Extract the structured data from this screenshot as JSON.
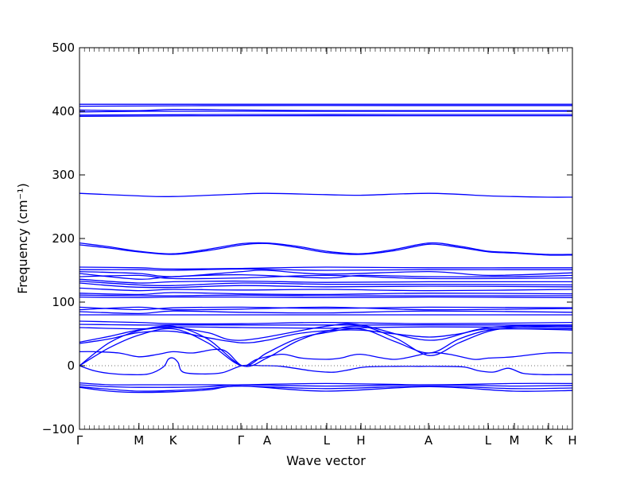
{
  "chart_data": {
    "type": "line",
    "title": "",
    "xlabel": "Wave vector",
    "ylabel": "Frequency (cm⁻¹)",
    "ylim": [
      -100,
      500
    ],
    "yticks": [
      -100,
      0,
      100,
      200,
      300,
      400,
      500
    ],
    "grid": false,
    "line_color": "#0000ff",
    "zero_line_color": "#6f6f6f",
    "high_symmetry_points": [
      {
        "label": "Γ",
        "x": 0.0
      },
      {
        "label": "M",
        "x": 0.1206
      },
      {
        "label": "K",
        "x": 0.1897
      },
      {
        "label": "Γ",
        "x": 0.3274
      },
      {
        "label": "A",
        "x": 0.3806
      },
      {
        "label": "L",
        "x": 0.5016
      },
      {
        "label": "H",
        "x": 0.571
      },
      {
        "label": "A",
        "x": 0.7081
      },
      {
        "label": "L",
        "x": 0.829
      },
      {
        "label": "M",
        "x": 0.8823
      },
      {
        "label": "K",
        "x": 0.9516
      },
      {
        "label": "H",
        "x": 1.0
      }
    ],
    "series": [
      {
        "x": [
          0.0,
          0.33,
          0.71,
          1.0
        ],
        "y": [
          411,
          411,
          411,
          411
        ]
      },
      {
        "x": [
          0.0,
          0.33,
          0.71,
          1.0
        ],
        "y": [
          408,
          409,
          409,
          409
        ]
      },
      {
        "x": [
          0.0,
          0.12,
          0.19,
          0.33,
          0.5,
          0.71,
          1.0
        ],
        "y": [
          402,
          401,
          403,
          402,
          401,
          401,
          401
        ]
      },
      {
        "x": [
          0.0,
          0.12,
          0.19,
          0.33,
          0.5,
          0.71,
          1.0
        ],
        "y": [
          399,
          400,
          400,
          400,
          400,
          400,
          400
        ]
      },
      {
        "x": [
          0.0,
          0.33,
          0.71,
          1.0
        ],
        "y": [
          394,
          395,
          395,
          395
        ]
      },
      {
        "x": [
          0.0,
          0.33,
          0.71,
          1.0
        ],
        "y": [
          392,
          393,
          393,
          393
        ]
      },
      {
        "x": [
          0.0,
          0.12,
          0.19,
          0.33,
          0.38,
          0.5,
          0.57,
          0.71,
          0.83,
          0.88,
          0.95,
          1.0
        ],
        "y": [
          271,
          267,
          266,
          270,
          271,
          269,
          268,
          271,
          267,
          266,
          265,
          265
        ]
      },
      {
        "x": [
          0.0,
          0.06,
          0.12,
          0.19,
          0.26,
          0.33,
          0.38,
          0.44,
          0.5,
          0.57,
          0.64,
          0.71,
          0.77,
          0.83,
          0.88,
          0.95,
          1.0
        ],
        "y": [
          193,
          187,
          180,
          176,
          183,
          192,
          193,
          188,
          180,
          176,
          183,
          193,
          188,
          180,
          178,
          175,
          175
        ]
      },
      {
        "x": [
          0.0,
          0.06,
          0.12,
          0.19,
          0.26,
          0.33,
          0.38,
          0.44,
          0.5,
          0.57,
          0.64,
          0.71,
          0.77,
          0.83,
          0.88,
          0.95,
          1.0
        ],
        "y": [
          190,
          185,
          179,
          175,
          181,
          190,
          192,
          186,
          178,
          175,
          181,
          191,
          186,
          179,
          177,
          174,
          174
        ]
      },
      {
        "x": [
          0.0,
          0.12,
          0.19,
          0.33,
          0.5,
          0.71,
          1.0
        ],
        "y": [
          155,
          154,
          152,
          153,
          155,
          154,
          154
        ]
      },
      {
        "x": [
          0.0,
          0.12,
          0.19,
          0.33,
          0.5,
          0.71,
          1.0
        ],
        "y": [
          151,
          151,
          150,
          152,
          150,
          151,
          151
        ]
      },
      {
        "x": [
          0.0,
          0.12,
          0.19,
          0.33,
          0.38,
          0.5,
          0.71,
          0.83,
          1.0
        ],
        "y": [
          148,
          145,
          140,
          148,
          150,
          144,
          148,
          142,
          146
        ]
      },
      {
        "x": [
          0.0,
          0.12,
          0.19,
          0.33,
          0.5,
          0.57,
          0.71,
          0.88,
          1.0
        ],
        "y": [
          145,
          136,
          140,
          143,
          138,
          142,
          140,
          140,
          142
        ]
      },
      {
        "x": [
          0.0,
          0.12,
          0.19,
          0.33,
          0.5,
          0.71,
          1.0
        ],
        "y": [
          140,
          142,
          137,
          138,
          142,
          137,
          138
        ]
      },
      {
        "x": [
          0.0,
          0.12,
          0.19,
          0.33,
          0.5,
          0.71,
          1.0
        ],
        "y": [
          136,
          130,
          132,
          133,
          131,
          132,
          132
        ]
      },
      {
        "x": [
          0.0,
          0.12,
          0.19,
          0.33,
          0.5,
          0.71,
          1.0
        ],
        "y": [
          133,
          127,
          126,
          130,
          128,
          128,
          127
        ]
      },
      {
        "x": [
          0.0,
          0.1,
          0.19,
          0.33,
          0.5,
          0.71,
          1.0
        ],
        "y": [
          130,
          124,
          123,
          126,
          124,
          125,
          124
        ]
      },
      {
        "x": [
          0.0,
          0.12,
          0.19,
          0.33,
          0.5,
          0.71,
          1.0
        ],
        "y": [
          122,
          118,
          120,
          119,
          120,
          118,
          120
        ]
      },
      {
        "x": [
          0.0,
          0.12,
          0.19,
          0.33,
          0.5,
          0.71,
          1.0
        ],
        "y": [
          114,
          112,
          115,
          113,
          112,
          114,
          113
        ]
      },
      {
        "x": [
          0.0,
          0.12,
          0.19,
          0.33,
          0.5,
          0.71,
          1.0
        ],
        "y": [
          111,
          110,
          110,
          111,
          110,
          110,
          110
        ]
      },
      {
        "x": [
          0.0,
          0.12,
          0.19,
          0.33,
          0.5,
          0.71,
          1.0
        ],
        "y": [
          108,
          107,
          108,
          108,
          107,
          108,
          107
        ]
      },
      {
        "x": [
          0.0,
          0.12,
          0.19,
          0.33,
          0.5,
          0.71,
          1.0
        ],
        "y": [
          92,
          88,
          91,
          92,
          90,
          92,
          91
        ]
      },
      {
        "x": [
          0.0,
          0.12,
          0.19,
          0.33,
          0.5,
          0.71,
          1.0
        ],
        "y": [
          88,
          92,
          88,
          89,
          92,
          88,
          90
        ]
      },
      {
        "x": [
          0.0,
          0.12,
          0.19,
          0.33,
          0.5,
          0.71,
          1.0
        ],
        "y": [
          85,
          82,
          86,
          84,
          83,
          86,
          84
        ]
      },
      {
        "x": [
          0.0,
          0.12,
          0.19,
          0.33,
          0.5,
          0.71,
          1.0
        ],
        "y": [
          80,
          80,
          80,
          80,
          80,
          80,
          80
        ]
      },
      {
        "x": [
          0.0,
          0.12,
          0.19,
          0.33,
          0.5,
          0.71,
          1.0
        ],
        "y": [
          70,
          68,
          66,
          66,
          68,
          66,
          68
        ]
      },
      {
        "x": [
          0.0,
          0.12,
          0.19,
          0.33,
          0.5,
          0.71,
          1.0
        ],
        "y": [
          65,
          64,
          64,
          64,
          64,
          64,
          64
        ]
      },
      {
        "x": [
          0.0,
          0.12,
          0.19,
          0.33,
          0.5,
          0.71,
          1.0
        ],
        "y": [
          60,
          58,
          61,
          60,
          59,
          61,
          60
        ]
      },
      {
        "x": [
          0.0,
          0.06,
          0.12,
          0.19,
          0.26,
          0.33,
          0.5,
          0.57,
          0.71,
          0.83,
          1.0
        ],
        "y": [
          37,
          46,
          56,
          60,
          52,
          40,
          62,
          64,
          40,
          60,
          64
        ]
      },
      {
        "x": [
          0.0,
          0.06,
          0.12,
          0.19,
          0.26,
          0.33,
          0.38,
          0.44,
          0.5,
          0.57,
          0.64,
          0.71,
          0.77,
          0.83,
          0.95,
          1.0
        ],
        "y": [
          35,
          42,
          52,
          54,
          44,
          36,
          40,
          50,
          55,
          56,
          50,
          45,
          50,
          58,
          57,
          56
        ]
      },
      {
        "x": [
          0.0,
          0.06,
          0.12,
          0.19,
          0.26,
          0.33,
          0.38,
          0.44,
          0.5,
          0.57,
          0.64,
          0.71,
          0.77,
          0.83,
          0.88,
          0.95,
          1.0
        ],
        "y": [
          0,
          36,
          55,
          62,
          42,
          0,
          12,
          38,
          54,
          62,
          44,
          16,
          36,
          54,
          60,
          62,
          62
        ]
      },
      {
        "x": [
          0.0,
          0.06,
          0.12,
          0.19,
          0.26,
          0.33,
          0.38,
          0.44,
          0.5,
          0.57,
          0.64,
          0.71,
          0.77,
          0.83,
          0.88,
          0.95,
          1.0
        ],
        "y": [
          0,
          28,
          48,
          58,
          36,
          0,
          20,
          42,
          52,
          58,
          38,
          20,
          42,
          56,
          58,
          58,
          58
        ]
      },
      {
        "x": [
          0.0,
          0.03,
          0.08,
          0.12,
          0.16,
          0.19,
          0.23,
          0.29,
          0.33,
          0.36,
          0.41,
          0.45,
          0.5,
          0.53,
          0.57,
          0.64,
          0.71,
          0.75,
          0.8,
          0.83,
          0.88,
          0.95,
          1.0
        ],
        "y": [
          22,
          22,
          20,
          14,
          18,
          22,
          20,
          25,
          0,
          10,
          18,
          12,
          10,
          12,
          18,
          10,
          20,
          18,
          10,
          12,
          14,
          20,
          20
        ]
      },
      {
        "x": [
          0.0,
          0.03,
          0.06,
          0.1,
          0.14,
          0.17,
          0.18,
          0.19,
          0.2,
          0.21,
          0.25,
          0.29,
          0.33,
          0.37,
          0.41,
          0.47,
          0.5,
          0.52,
          0.55,
          0.58,
          0.64,
          0.69,
          0.73,
          0.78,
          0.81,
          0.84,
          0.87,
          0.9,
          0.94,
          0.97,
          1.0
        ],
        "y": [
          0,
          -8,
          -12,
          -14,
          -13,
          -2,
          10,
          12,
          5,
          -10,
          -13,
          -11,
          0,
          0,
          -1,
          -8,
          -10,
          -10,
          -6,
          -2,
          -1,
          -1,
          -1,
          -2,
          -8,
          -10,
          -4,
          -12,
          -14,
          -14,
          -14
        ]
      },
      {
        "x": [
          0.0,
          0.06,
          0.12,
          0.19,
          0.26,
          0.33,
          0.5,
          0.71,
          0.88,
          1.0
        ],
        "y": [
          -27,
          -30,
          -30,
          -30,
          -30,
          -30,
          -28,
          -30,
          -28,
          -28
        ]
      },
      {
        "x": [
          0.0,
          0.06,
          0.12,
          0.19,
          0.26,
          0.33,
          0.5,
          0.71,
          0.88,
          1.0
        ],
        "y": [
          -30,
          -33,
          -34,
          -34,
          -33,
          -30,
          -32,
          -30,
          -32,
          -31
        ]
      },
      {
        "x": [
          0.0,
          0.06,
          0.12,
          0.19,
          0.26,
          0.33,
          0.5,
          0.71,
          0.88,
          1.0
        ],
        "y": [
          -33,
          -37,
          -40,
          -39,
          -36,
          -32,
          -36,
          -32,
          -36,
          -35
        ]
      },
      {
        "x": [
          0.0,
          0.06,
          0.12,
          0.19,
          0.26,
          0.33,
          0.5,
          0.71,
          0.88,
          1.0
        ],
        "y": [
          -34,
          -40,
          -42,
          -41,
          -38,
          -32,
          -40,
          -33,
          -40,
          -39
        ]
      }
    ]
  }
}
